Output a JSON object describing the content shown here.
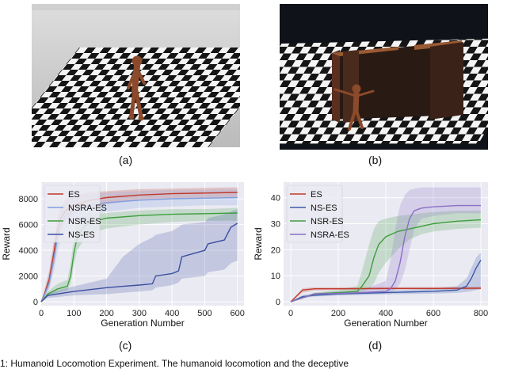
{
  "panels": {
    "a": {
      "label": "(a)"
    },
    "b": {
      "label": "(b)"
    },
    "c": {
      "label": "(c)"
    },
    "d": {
      "label": "(d)"
    }
  },
  "caption_fragment": "1: Humanoid Locomotion Experiment. The humanoid locomotion and the deceptive",
  "colors": {
    "ES": "#c0392b",
    "NSRA-ES": "#7f9fe0",
    "NSR-ES": "#3e9e3e",
    "NS-ES": "#3c4fa0",
    "d_NS-ES": "#3c5aa8",
    "d_NSRA-ES": "#8a6fc4",
    "plot_bg": "#eaeaf2"
  },
  "chart_data": [
    {
      "type": "line",
      "panel": "(c)",
      "xlabel": "Generation Number",
      "ylabel": "Reward",
      "xlim": [
        0,
        620
      ],
      "ylim": [
        -300,
        9300
      ],
      "xticks": [
        0,
        100,
        200,
        300,
        400,
        500,
        600
      ],
      "yticks": [
        0,
        2000,
        4000,
        6000,
        8000
      ],
      "legend_position": "top-left",
      "series": [
        {
          "name": "ES",
          "color_key": "ES",
          "x": [
            0,
            10,
            25,
            40,
            50,
            60,
            75,
            100,
            150,
            200,
            300,
            400,
            500,
            600
          ],
          "y": [
            0,
            600,
            1800,
            4000,
            5600,
            6500,
            7100,
            7500,
            7900,
            8100,
            8300,
            8400,
            8450,
            8500
          ],
          "lo": [
            0,
            400,
            1200,
            3000,
            4600,
            5500,
            6300,
            6800,
            7300,
            7600,
            7900,
            8000,
            8050,
            8100
          ],
          "hi": [
            0,
            900,
            2500,
            5000,
            6600,
            7400,
            8000,
            8300,
            8500,
            8600,
            8750,
            8800,
            8850,
            8900
          ]
        },
        {
          "name": "NSRA-ES",
          "color_key": "NSRA-ES",
          "x": [
            0,
            10,
            25,
            40,
            50,
            60,
            75,
            100,
            150,
            200,
            300,
            400,
            500,
            600
          ],
          "y": [
            0,
            500,
            1500,
            3500,
            5000,
            6000,
            6700,
            7100,
            7500,
            7700,
            7900,
            8000,
            8050,
            8100
          ],
          "lo": [
            0,
            300,
            1000,
            2500,
            3900,
            4900,
            5700,
            6200,
            6800,
            7000,
            7300,
            7400,
            7500,
            7500
          ],
          "hi": [
            0,
            800,
            2300,
            4700,
            6300,
            7200,
            7800,
            8100,
            8400,
            8500,
            8600,
            8700,
            8700,
            8750
          ]
        },
        {
          "name": "NSR-ES",
          "color_key": "NSR-ES",
          "x": [
            0,
            20,
            50,
            80,
            90,
            100,
            110,
            130,
            150,
            200,
            300,
            400,
            500,
            600
          ],
          "y": [
            0,
            600,
            1000,
            1200,
            2000,
            3800,
            5000,
            5800,
            6200,
            6500,
            6700,
            6800,
            6850,
            6900
          ],
          "lo": [
            0,
            400,
            700,
            900,
            1400,
            2800,
            4000,
            4800,
            5300,
            5700,
            6000,
            6200,
            6300,
            6300
          ],
          "hi": [
            0,
            800,
            1400,
            1700,
            3000,
            5000,
            6200,
            6600,
            6800,
            6900,
            7100,
            7200,
            7200,
            7300
          ]
        },
        {
          "name": "NS-ES",
          "color_key": "NS-ES",
          "x": [
            0,
            20,
            100,
            200,
            250,
            300,
            340,
            350,
            400,
            420,
            430,
            500,
            510,
            560,
            580,
            600
          ],
          "y": [
            0,
            500,
            800,
            1100,
            1200,
            1300,
            1400,
            2000,
            2200,
            2400,
            3500,
            4000,
            4500,
            4800,
            5800,
            6100
          ],
          "lo": [
            0,
            300,
            500,
            600,
            700,
            800,
            900,
            1100,
            1300,
            1500,
            1800,
            2000,
            2300,
            2500,
            3000,
            3200
          ],
          "hi": [
            0,
            700,
            1200,
            1800,
            3500,
            4500,
            5000,
            5200,
            5500,
            5800,
            6000,
            6200,
            6500,
            6800,
            7000,
            7200
          ]
        }
      ]
    },
    {
      "type": "line",
      "panel": "(d)",
      "xlabel": "Generation Number",
      "ylabel": "Reward",
      "xlim": [
        -30,
        830
      ],
      "ylim": [
        -1.5,
        46
      ],
      "xticks": [
        0,
        200,
        400,
        600,
        800
      ],
      "yticks": [
        0,
        10,
        20,
        30,
        40
      ],
      "legend_position": "top-left",
      "series": [
        {
          "name": "ES",
          "color_key": "ES",
          "x": [
            0,
            50,
            100,
            200,
            400,
            600,
            800
          ],
          "y": [
            0,
            4.5,
            5,
            5,
            5.1,
            5.1,
            5.2
          ],
          "lo": [
            0,
            3.5,
            4.3,
            4.5,
            4.6,
            4.7,
            4.7
          ],
          "hi": [
            0,
            5.2,
            5.6,
            5.6,
            5.7,
            5.7,
            5.8
          ]
        },
        {
          "name": "NS-ES",
          "color_key": "d_NS-ES",
          "x": [
            0,
            50,
            100,
            200,
            400,
            600,
            700,
            740,
            760,
            780,
            800
          ],
          "y": [
            0,
            2,
            2.5,
            3,
            3.5,
            4,
            4.5,
            6,
            9,
            13,
            16
          ],
          "lo": [
            0,
            1.5,
            2,
            2.4,
            2.8,
            3.1,
            3.4,
            3.8,
            4,
            4.5,
            5
          ],
          "hi": [
            0,
            2.6,
            3.2,
            3.8,
            4.3,
            5,
            6,
            9,
            13,
            17,
            19
          ]
        },
        {
          "name": "NSR-ES",
          "color_key": "NSR-ES",
          "x": [
            0,
            100,
            200,
            280,
            300,
            330,
            350,
            370,
            400,
            450,
            500,
            550,
            600,
            700,
            800
          ],
          "y": [
            0,
            3,
            3.5,
            4,
            6,
            10,
            17,
            22,
            25,
            27,
            28,
            29,
            30,
            31,
            31.5
          ],
          "lo": [
            0,
            2.5,
            3,
            3.3,
            4,
            5,
            7,
            11,
            15,
            20,
            24,
            26,
            27,
            28,
            28.5
          ],
          "hi": [
            0,
            3.5,
            4.5,
            6,
            12,
            22,
            28,
            31,
            32,
            33,
            33.5,
            34,
            34.5,
            35,
            35
          ]
        },
        {
          "name": "NSRA-ES",
          "color_key": "d_NSRA-ES",
          "x": [
            0,
            100,
            200,
            300,
            400,
            420,
            440,
            460,
            480,
            500,
            520,
            550,
            600,
            700,
            800
          ],
          "y": [
            0,
            3,
            3.2,
            3.5,
            4,
            5,
            8,
            15,
            25,
            32,
            35,
            36,
            36.5,
            37,
            37
          ],
          "lo": [
            0,
            2.5,
            2.7,
            3,
            3.3,
            3.6,
            4.5,
            7,
            12,
            20,
            28,
            32,
            33,
            34,
            34
          ],
          "hi": [
            0,
            3.5,
            4,
            4.5,
            8,
            16,
            28,
            37,
            41,
            43,
            43.5,
            44,
            44,
            44,
            44
          ]
        }
      ]
    }
  ]
}
